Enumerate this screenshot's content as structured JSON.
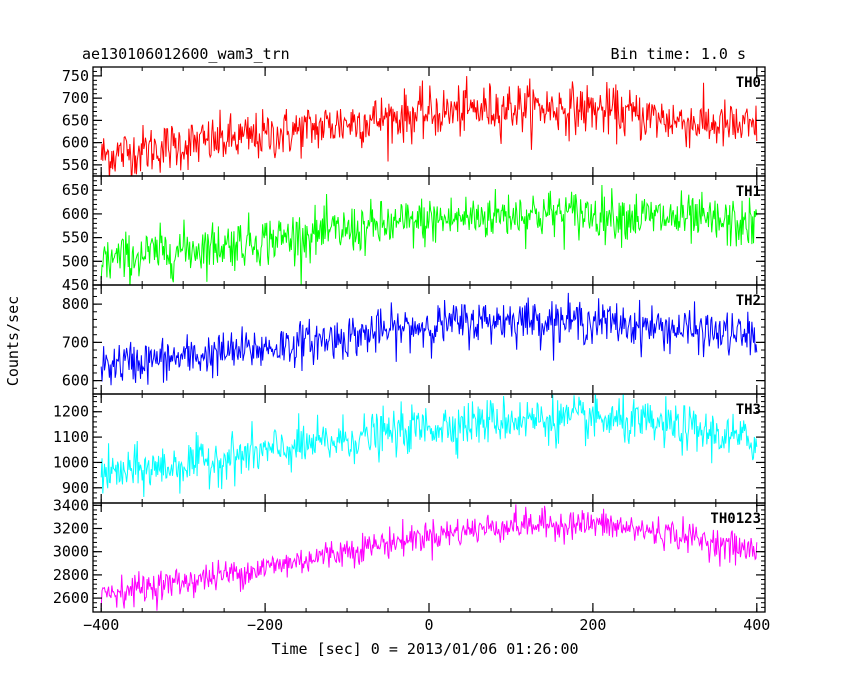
{
  "header": {
    "title": "ae130106012600_wam3_trn",
    "bin_time": "Bin time: 1.0 s"
  },
  "chart_data": {
    "type": "line",
    "xlabel": "Time [sec] 0 = 2013/01/06 01:26:00",
    "ylabel": "Counts/sec",
    "xlim": [
      -410,
      410
    ],
    "xticks": [
      -400,
      -200,
      0,
      200,
      400
    ],
    "xtick_labels": [
      "−400",
      "−200",
      "0",
      "200",
      "400"
    ],
    "panels": [
      {
        "name": "TH0",
        "color": "#ff0000",
        "ylim": [
          525,
          770
        ],
        "yticks": [
          550,
          600,
          650,
          700,
          750
        ],
        "trend_t": [
          -400,
          -300,
          -200,
          -100,
          0,
          100,
          200,
          300,
          400
        ],
        "trend_v": [
          570,
          595,
          615,
          645,
          665,
          680,
          675,
          650,
          630
        ],
        "noise": 28
      },
      {
        "name": "TH1",
        "color": "#00ff00",
        "ylim": [
          450,
          680
        ],
        "yticks": [
          450,
          500,
          550,
          600,
          650
        ],
        "trend_t": [
          -400,
          -300,
          -200,
          -100,
          0,
          100,
          200,
          300,
          400
        ],
        "trend_v": [
          500,
          525,
          545,
          565,
          585,
          600,
          600,
          590,
          575
        ],
        "noise": 26
      },
      {
        "name": "TH2",
        "color": "#0000ff",
        "ylim": [
          565,
          850
        ],
        "yticks": [
          600,
          700,
          800
        ],
        "trend_t": [
          -400,
          -300,
          -200,
          -100,
          0,
          100,
          200,
          300,
          400
        ],
        "trend_v": [
          640,
          660,
          685,
          715,
          745,
          760,
          755,
          735,
          715
        ],
        "noise": 28
      },
      {
        "name": "TH3",
        "color": "#00ffff",
        "ylim": [
          840,
          1270
        ],
        "yticks": [
          900,
          1000,
          1100,
          1200
        ],
        "trend_t": [
          -400,
          -300,
          -200,
          -100,
          0,
          100,
          200,
          300,
          400
        ],
        "trend_v": [
          950,
          990,
          1040,
          1090,
          1140,
          1170,
          1170,
          1140,
          1080
        ],
        "noise": 45
      },
      {
        "name": "TH0123",
        "color": "#ff00ff",
        "ylim": [
          2480,
          3420
        ],
        "yticks": [
          2600,
          2800,
          3000,
          3200,
          3400
        ],
        "trend_t": [
          -400,
          -300,
          -200,
          -100,
          0,
          100,
          200,
          300,
          400
        ],
        "trend_v": [
          2640,
          2740,
          2860,
          3010,
          3140,
          3230,
          3240,
          3150,
          3000
        ],
        "noise": 65
      }
    ]
  }
}
